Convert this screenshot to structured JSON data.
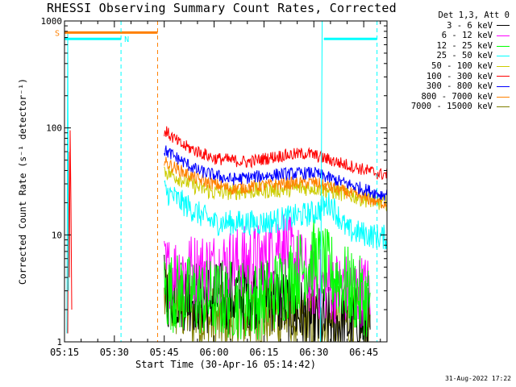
{
  "footer_date": "31-Aug-2022 17:22",
  "chart_data": {
    "type": "line",
    "title": "RHESSI Observing Summary Count Rates, Corrected",
    "xlabel": "Start Time (30-Apr-16 05:14:42)",
    "ylabel": "Corrected Count Rate (s⁻¹ detector⁻¹)",
    "ylog": true,
    "ylim": [
      1,
      1000
    ],
    "xlim": [
      "05:15",
      "06:52"
    ],
    "x_ticks": [
      "05:15",
      "05:30",
      "05:45",
      "06:00",
      "06:15",
      "06:30",
      "06:45"
    ],
    "y_ticks": [
      "1",
      "10",
      "100",
      "1000"
    ],
    "legend_header": "Det 1,3, Att 0",
    "legend_placement": "right",
    "series": [
      {
        "name": "3 - 6 keV",
        "color": "#000000",
        "approx_values": [
          [
            "05:45",
            3.0
          ],
          [
            "06:00",
            2.5
          ],
          [
            "06:15",
            3.0
          ],
          [
            "06:30",
            1.5
          ],
          [
            "06:45",
            1.5
          ]
        ]
      },
      {
        "name": "6 - 12 keV",
        "color": "#ff00ff",
        "approx_values": [
          [
            "05:45",
            4.5
          ],
          [
            "06:00",
            5.0
          ],
          [
            "06:15",
            6.0
          ],
          [
            "06:20",
            9.0
          ],
          [
            "06:30",
            3.5
          ],
          [
            "06:45",
            3.0
          ]
        ]
      },
      {
        "name": "12 - 25 keV",
        "color": "#00ff00",
        "approx_values": [
          [
            "05:45",
            3.0
          ],
          [
            "06:00",
            2.5
          ],
          [
            "06:15",
            2.5
          ],
          [
            "06:30",
            6.0
          ],
          [
            "06:45",
            2.5
          ]
        ]
      },
      {
        "name": "25 - 50 keV",
        "color": "#00ffff",
        "approx_values": [
          [
            "05:45",
            26
          ],
          [
            "05:55",
            16
          ],
          [
            "06:00",
            13
          ],
          [
            "06:15",
            13
          ],
          [
            "06:30",
            16
          ],
          [
            "06:35",
            20
          ],
          [
            "06:40",
            11
          ],
          [
            "06:50",
            9.5
          ]
        ]
      },
      {
        "name": "50 - 100 keV",
        "color": "#cccc00",
        "approx_values": [
          [
            "05:45",
            40
          ],
          [
            "05:55",
            28
          ],
          [
            "06:00",
            25
          ],
          [
            "06:15",
            26
          ],
          [
            "06:30",
            28
          ],
          [
            "06:40",
            24
          ],
          [
            "06:50",
            20
          ]
        ]
      },
      {
        "name": "100 - 300 keV",
        "color": "#ff0000",
        "approx_values": [
          [
            "05:45",
            95
          ],
          [
            "05:50",
            70
          ],
          [
            "06:00",
            52
          ],
          [
            "06:10",
            48
          ],
          [
            "06:20",
            55
          ],
          [
            "06:28",
            58
          ],
          [
            "06:40",
            45
          ],
          [
            "06:50",
            37
          ]
        ]
      },
      {
        "name": "300 - 800 keV",
        "color": "#0000ff",
        "approx_values": [
          [
            "05:45",
            62
          ],
          [
            "05:55",
            40
          ],
          [
            "06:05",
            33
          ],
          [
            "06:20",
            37
          ],
          [
            "06:30",
            38
          ],
          [
            "06:40",
            30
          ],
          [
            "06:50",
            24
          ]
        ]
      },
      {
        "name": "800 - 7000 keV",
        "color": "#ff8000",
        "approx_values": [
          [
            "05:45",
            48
          ],
          [
            "05:55",
            33
          ],
          [
            "06:05",
            27
          ],
          [
            "06:20",
            30
          ],
          [
            "06:30",
            31
          ],
          [
            "06:40",
            25
          ],
          [
            "06:50",
            20
          ]
        ]
      },
      {
        "name": "7000 - 15000 keV",
        "color": "#808000",
        "approx_values": [
          [
            "05:45",
            2.5
          ],
          [
            "06:00",
            1.5
          ],
          [
            "06:15",
            1.8
          ],
          [
            "06:30",
            1.5
          ],
          [
            "06:45",
            1.5
          ]
        ]
      }
    ],
    "flags": [
      {
        "label": "S",
        "color": "#ff8000",
        "from": "05:15",
        "to": "05:43"
      },
      {
        "label": "N",
        "color": "#00ffff",
        "from": "05:15",
        "to": "05:32"
      }
    ]
  }
}
